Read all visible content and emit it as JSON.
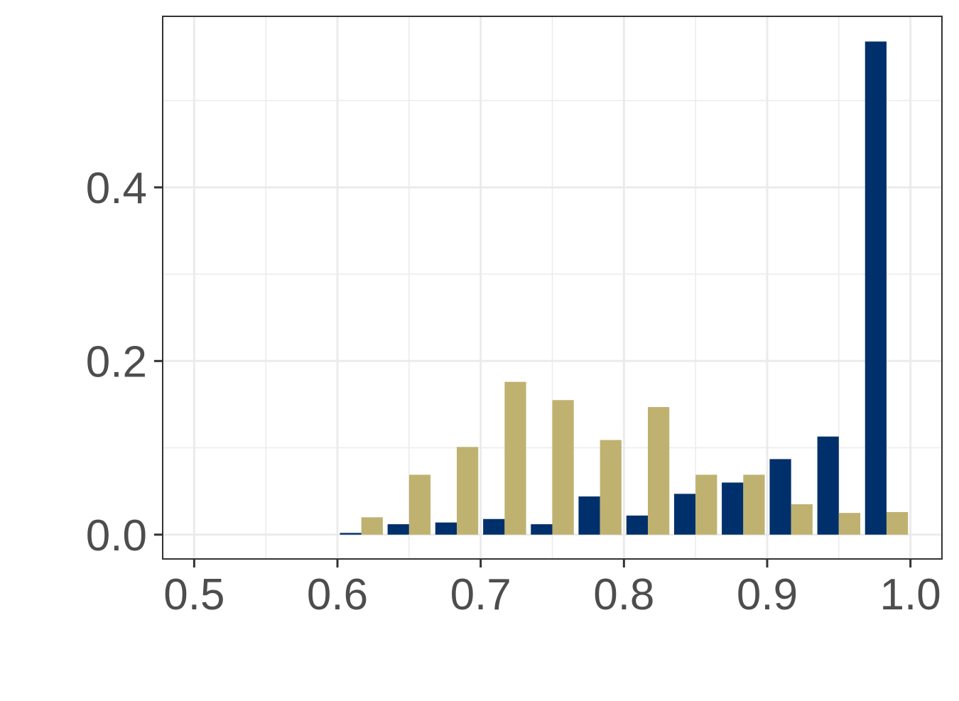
{
  "chart_data": {
    "type": "bar",
    "title": "",
    "xlabel": "",
    "ylabel": "",
    "xlim": [
      0.478,
      1.022
    ],
    "ylim": [
      -0.028,
      0.597
    ],
    "x_ticks": [
      0.5,
      0.6,
      0.7,
      0.8,
      0.9,
      1.0
    ],
    "x_tick_labels": [
      "0.5",
      "0.6",
      "0.7",
      "0.8",
      "0.9",
      "1.0"
    ],
    "y_ticks": [
      0.0,
      0.2,
      0.4
    ],
    "y_tick_labels": [
      "0.0",
      "0.2",
      "0.4"
    ],
    "bin_width": 0.0333,
    "bins": [
      0.6167,
      0.65,
      0.6833,
      0.7167,
      0.75,
      0.7833,
      0.8167,
      0.85,
      0.8833,
      0.9167,
      0.95,
      0.9833
    ],
    "grid": true,
    "legend": "none",
    "series": [
      {
        "color": "#00306b",
        "values": [
          0.002,
          0.012,
          0.014,
          0.018,
          0.012,
          0.044,
          0.022,
          0.047,
          0.06,
          0.087,
          0.113,
          0.568
        ]
      },
      {
        "color": "#bfb170",
        "values": [
          0.02,
          0.069,
          0.101,
          0.176,
          0.155,
          0.109,
          0.147,
          0.069,
          0.069,
          0.035,
          0.025,
          0.026
        ]
      }
    ]
  }
}
